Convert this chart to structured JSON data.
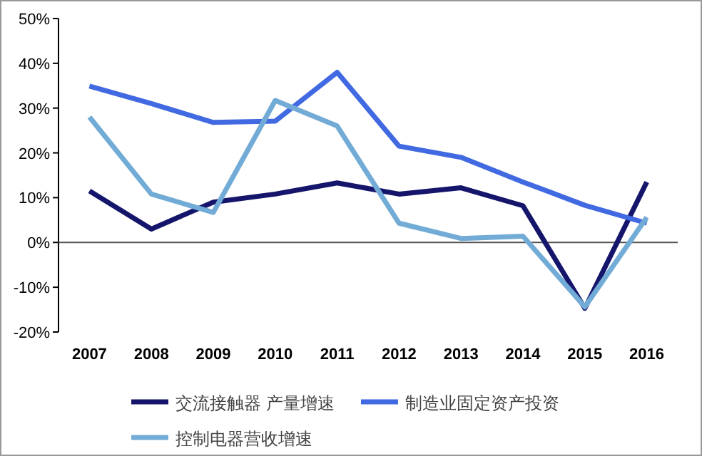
{
  "chart_data": {
    "type": "line",
    "categories": [
      "2007",
      "2008",
      "2009",
      "2010",
      "2011",
      "2012",
      "2013",
      "2014",
      "2015",
      "2016"
    ],
    "ylim": [
      -20,
      50
    ],
    "yticks": [
      {
        "value": -20,
        "label": "-20%"
      },
      {
        "value": -10,
        "label": "-10%"
      },
      {
        "value": 0,
        "label": "0%"
      },
      {
        "value": 10,
        "label": "10%"
      },
      {
        "value": 20,
        "label": "20%"
      },
      {
        "value": 30,
        "label": "30%"
      },
      {
        "value": 40,
        "label": "40%"
      },
      {
        "value": 50,
        "label": "50%"
      }
    ],
    "series": [
      {
        "name": "交流接触器 产量增速",
        "color": "#15166b",
        "values": [
          11.5,
          3,
          9,
          10.8,
          13.3,
          10.8,
          12.2,
          8.2,
          -14.7,
          13.5
        ]
      },
      {
        "name": "制造业固定资产投资",
        "color": "#4169e1",
        "values": [
          34.9,
          31,
          26.8,
          27.1,
          38,
          21.5,
          19,
          13.5,
          8.3,
          4.3
        ]
      },
      {
        "name": "控制电器营收增速",
        "color": "#72acd6",
        "values": [
          28,
          10.8,
          6.7,
          31.7,
          26,
          4.3,
          0.9,
          1.4,
          -14.4,
          5.6
        ]
      }
    ],
    "legend": "bottom",
    "line_style": "solid",
    "marker": "none"
  }
}
